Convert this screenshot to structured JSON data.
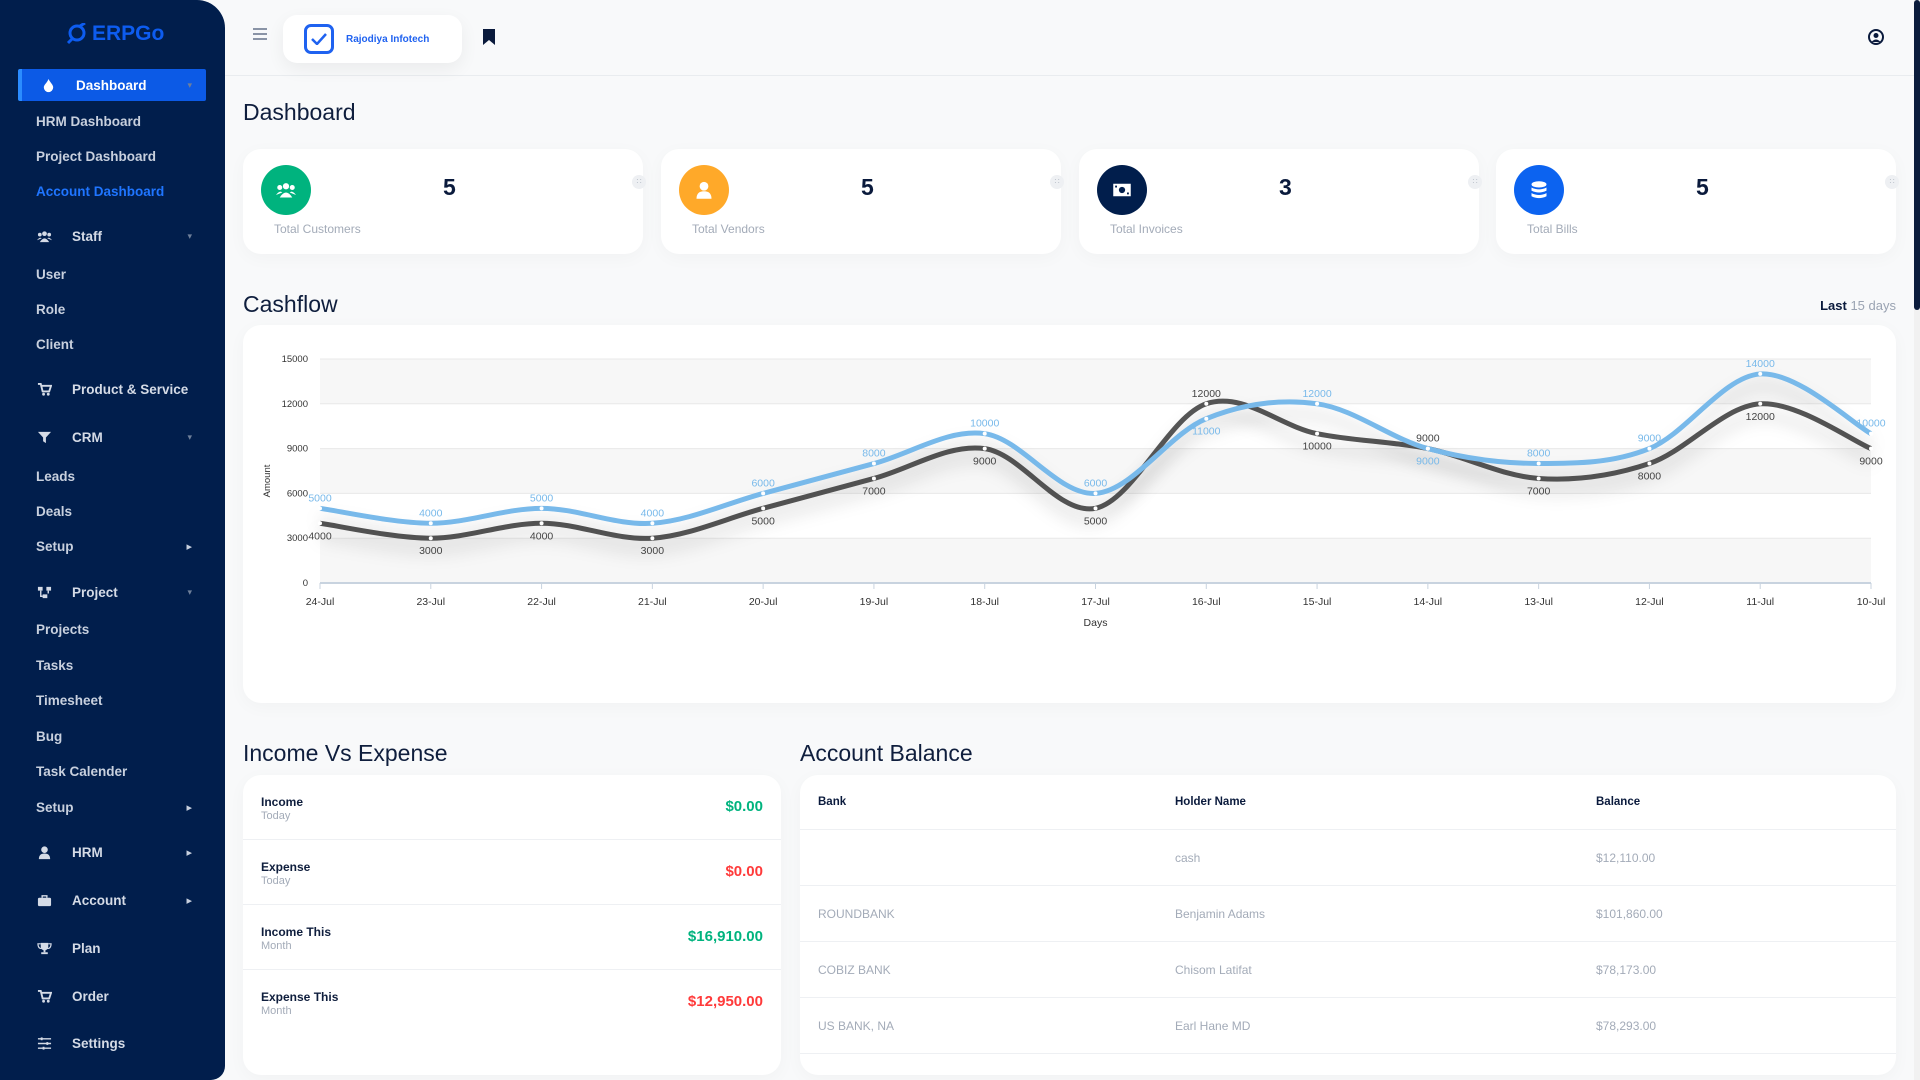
{
  "brand": {
    "name": "ERPGo",
    "company": "Rajodiya Infotech",
    "accent": "#0c5ae6",
    "sidebar_bg": "#011e4c"
  },
  "sidebar": {
    "items": [
      {
        "label": "Dashboard",
        "type": "top",
        "icon": "fire-icon",
        "chev": "down",
        "state": "active"
      },
      {
        "label": "HRM Dashboard",
        "type": "sub"
      },
      {
        "label": "Project Dashboard",
        "type": "sub"
      },
      {
        "label": "Account Dashboard",
        "type": "sub",
        "state": "current"
      },
      {
        "label": "Staff",
        "type": "top",
        "icon": "users-icon",
        "chev": "down"
      },
      {
        "label": "User",
        "type": "sub"
      },
      {
        "label": "Role",
        "type": "sub"
      },
      {
        "label": "Client",
        "type": "sub"
      },
      {
        "label": "Product & Service",
        "type": "top",
        "icon": "cart-icon"
      },
      {
        "label": "CRM",
        "type": "top",
        "icon": "filter-icon",
        "chev": "down"
      },
      {
        "label": "Leads",
        "type": "sub"
      },
      {
        "label": "Deals",
        "type": "sub"
      },
      {
        "label": "Setup",
        "type": "sub",
        "chev": "right"
      },
      {
        "label": "Project",
        "type": "top",
        "icon": "project-icon",
        "chev": "down"
      },
      {
        "label": "Projects",
        "type": "sub"
      },
      {
        "label": "Tasks",
        "type": "sub"
      },
      {
        "label": "Timesheet",
        "type": "sub"
      },
      {
        "label": "Bug",
        "type": "sub"
      },
      {
        "label": "Task Calender",
        "type": "sub"
      },
      {
        "label": "Setup",
        "type": "sub",
        "chev": "right"
      },
      {
        "label": "HRM",
        "type": "top",
        "icon": "user-icon",
        "chev": "right"
      },
      {
        "label": "Account",
        "type": "top",
        "icon": "briefcase-icon",
        "chev": "right"
      },
      {
        "label": "Plan",
        "type": "top",
        "icon": "trophy-icon"
      },
      {
        "label": "Order",
        "type": "top",
        "icon": "cart-icon"
      },
      {
        "label": "Settings",
        "type": "top",
        "icon": "sliders-icon"
      }
    ]
  },
  "page": {
    "title": "Dashboard"
  },
  "stats": [
    {
      "label": "Total Customers",
      "value": "5",
      "color": "#00b37e",
      "icon": "users-icon"
    },
    {
      "label": "Total Vendors",
      "value": "5",
      "color": "#ffa929",
      "icon": "user-icon"
    },
    {
      "label": "Total Invoices",
      "value": "3",
      "color": "#011e4c",
      "icon": "money-icon"
    },
    {
      "label": "Total Bills",
      "value": "5",
      "color": "#0c63f0",
      "icon": "database-icon"
    }
  ],
  "cashflow": {
    "title": "Cashflow",
    "range_prefix": "Last",
    "range_value": "15 days"
  },
  "chart_data": {
    "type": "line",
    "title": "Cashflow",
    "xlabel": "Days",
    "ylabel": "Amount",
    "ylim": [
      0,
      15000
    ],
    "yticks": [
      "0",
      "3000",
      "6000",
      "9000",
      "12000",
      "15000"
    ],
    "categories": [
      "24-Jul",
      "23-Jul",
      "22-Jul",
      "21-Jul",
      "20-Jul",
      "19-Jul",
      "18-Jul",
      "17-Jul",
      "16-Jul",
      "15-Jul",
      "14-Jul",
      "13-Jul",
      "12-Jul",
      "11-Jul",
      "10-Jul"
    ],
    "series": [
      {
        "color": "#78b9ea",
        "values": [
          5000,
          4000,
          5000,
          4000,
          6000,
          8000,
          10000,
          6000,
          11000,
          12000,
          9000,
          8000,
          9000,
          14000,
          10000
        ]
      },
      {
        "color": "#545454",
        "values": [
          4000,
          3000,
          4000,
          3000,
          5000,
          7000,
          9000,
          5000,
          12000,
          10000,
          9000,
          7000,
          8000,
          12000,
          9000
        ]
      }
    ],
    "grid": true
  },
  "income_expense": {
    "title": "Income Vs Expense",
    "rows": [
      {
        "title": "Income",
        "sub": "Today",
        "value": "$0.00",
        "color": "#00b37e"
      },
      {
        "title": "Expense",
        "sub": "Today",
        "value": "$0.00",
        "color": "#ff3a3a"
      },
      {
        "title": "Income This",
        "sub": "Month",
        "value": "$16,910.00",
        "color": "#00b37e"
      },
      {
        "title": "Expense This",
        "sub": "Month",
        "value": "$12,950.00",
        "color": "#ff3a3a"
      }
    ]
  },
  "account_balance": {
    "title": "Account Balance",
    "columns": [
      "Bank",
      "Holder Name",
      "Balance"
    ],
    "rows": [
      [
        "",
        "cash",
        "$12,110.00"
      ],
      [
        "ROUNDBANK",
        "Benjamin Adams",
        "$101,860.00"
      ],
      [
        "COBIZ BANK",
        "Chisom Latifat",
        "$78,173.00"
      ],
      [
        "US BANK, NA",
        "Earl Hane MD",
        "$78,293.00"
      ]
    ]
  }
}
